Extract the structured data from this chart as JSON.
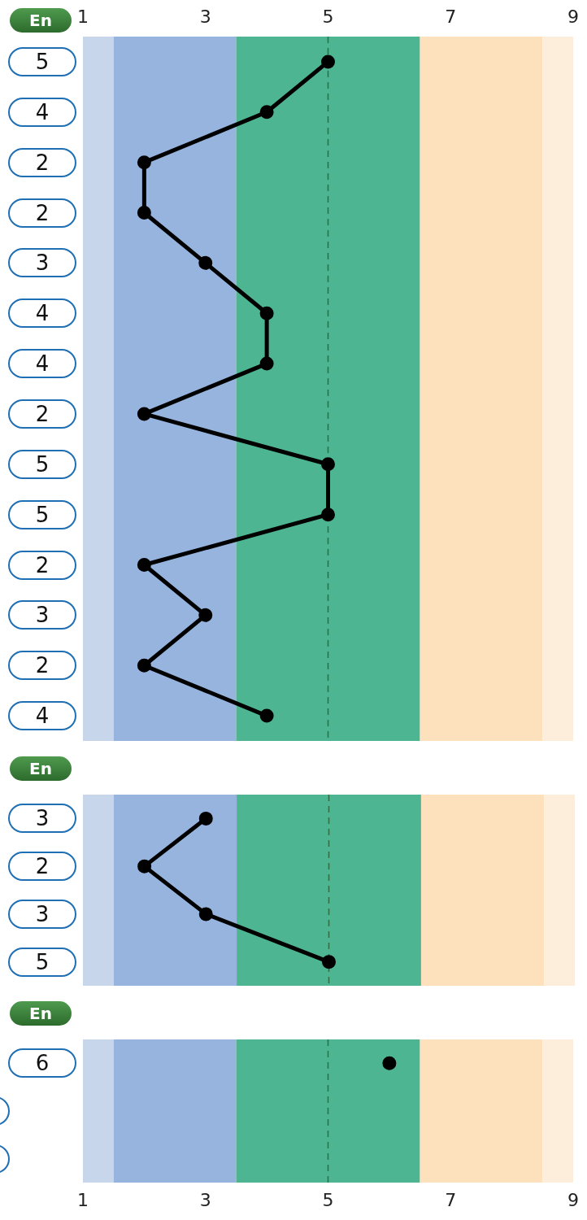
{
  "chart_data": [
    {
      "type": "line",
      "title": "En",
      "orientation": "horizontal",
      "categories": [
        "5",
        "4",
        "2",
        "2",
        "3",
        "4",
        "4",
        "2",
        "5",
        "5",
        "2",
        "3",
        "2",
        "4"
      ],
      "series": [
        {
          "color": "#000000",
          "values": [
            5,
            4,
            2,
            2,
            3,
            4,
            4,
            2,
            5,
            5,
            2,
            3,
            2,
            4
          ]
        }
      ],
      "xlim": [
        1,
        9
      ],
      "xticks": [
        1,
        3,
        5,
        7,
        9
      ],
      "marker": "circle",
      "bands": [
        {
          "axis": "x",
          "from": 1,
          "to": 1.5,
          "color": "#c8d6ec"
        },
        {
          "axis": "x",
          "from": 1.5,
          "to": 3.5,
          "color": "#96b4de"
        },
        {
          "axis": "x",
          "from": 3.5,
          "to": 6.5,
          "color": "#4db591"
        },
        {
          "axis": "x",
          "from": 6.5,
          "to": 8.5,
          "color": "#fde0bc"
        },
        {
          "axis": "x",
          "from": 8.5,
          "to": 9,
          "color": "#fdeedb"
        }
      ],
      "ref_lines": [
        {
          "axis": "x",
          "value": 5,
          "color": "#2f6e40",
          "line_style": "dashed"
        }
      ]
    },
    {
      "type": "line",
      "title": "En",
      "orientation": "horizontal",
      "categories": [
        "3",
        "2",
        "3",
        "5"
      ],
      "series": [
        {
          "color": "#000000",
          "values": [
            3,
            2,
            3,
            5
          ]
        }
      ],
      "xlim": [
        1,
        9
      ],
      "tick_labels": "y",
      "marker": "circle",
      "bands": [
        {
          "axis": "x",
          "from": 1,
          "to": 1.5,
          "color": "#c8d6ec"
        },
        {
          "axis": "x",
          "from": 1.5,
          "to": 3.5,
          "color": "#96b4de"
        },
        {
          "axis": "x",
          "from": 3.5,
          "to": 6.5,
          "color": "#4db591"
        },
        {
          "axis": "x",
          "from": 6.5,
          "to": 8.5,
          "color": "#fde0bc"
        },
        {
          "axis": "x",
          "from": 8.5,
          "to": 9,
          "color": "#fdeedb"
        }
      ],
      "ref_lines": [
        {
          "axis": "x",
          "value": 5,
          "color": "#2f6e40",
          "line_style": "dashed"
        }
      ]
    },
    {
      "type": "line",
      "title": "En",
      "orientation": "horizontal",
      "categories": [
        "6",
        null,
        null
      ],
      "series": [
        {
          "color": "#000000",
          "values": [
            6,
            null,
            null
          ]
        }
      ],
      "xlim": [
        1,
        9
      ],
      "xticks": [
        1,
        3,
        5,
        7,
        9
      ],
      "marker": "circle",
      "bands": [
        {
          "axis": "x",
          "from": 1,
          "to": 1.5,
          "color": "#c8d6ec"
        },
        {
          "axis": "x",
          "from": 1.5,
          "to": 3.5,
          "color": "#96b4de"
        },
        {
          "axis": "x",
          "from": 3.5,
          "to": 6.5,
          "color": "#4db591"
        },
        {
          "axis": "x",
          "from": 6.5,
          "to": 8.5,
          "color": "#fde0bc"
        },
        {
          "axis": "x",
          "from": 8.5,
          "to": 9,
          "color": "#fdeedb"
        }
      ],
      "ref_lines": [
        {
          "axis": "x",
          "value": 5,
          "color": "#2f6e40",
          "line_style": "dashed"
        }
      ]
    }
  ]
}
